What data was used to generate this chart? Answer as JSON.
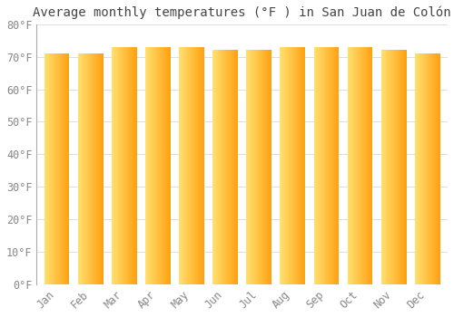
{
  "title": "Average monthly temperatures (°F ) in San Juan de Colón",
  "months": [
    "Jan",
    "Feb",
    "Mar",
    "Apr",
    "May",
    "Jun",
    "Jul",
    "Aug",
    "Sep",
    "Oct",
    "Nov",
    "Dec"
  ],
  "values": [
    71,
    71,
    73,
    73,
    73,
    72,
    72,
    73,
    73,
    73,
    72,
    71
  ],
  "bar_color_left": "#FFE070",
  "bar_color_right": "#FFA010",
  "background_color": "#FFFFFF",
  "grid_color": "#DDDDDD",
  "ylabel_color": "#888888",
  "xlabel_color": "#888888",
  "title_color": "#444444",
  "ylim": [
    0,
    80
  ],
  "yticks": [
    0,
    10,
    20,
    30,
    40,
    50,
    60,
    70,
    80
  ],
  "title_fontsize": 10,
  "tick_fontsize": 8.5,
  "bar_width": 0.75
}
